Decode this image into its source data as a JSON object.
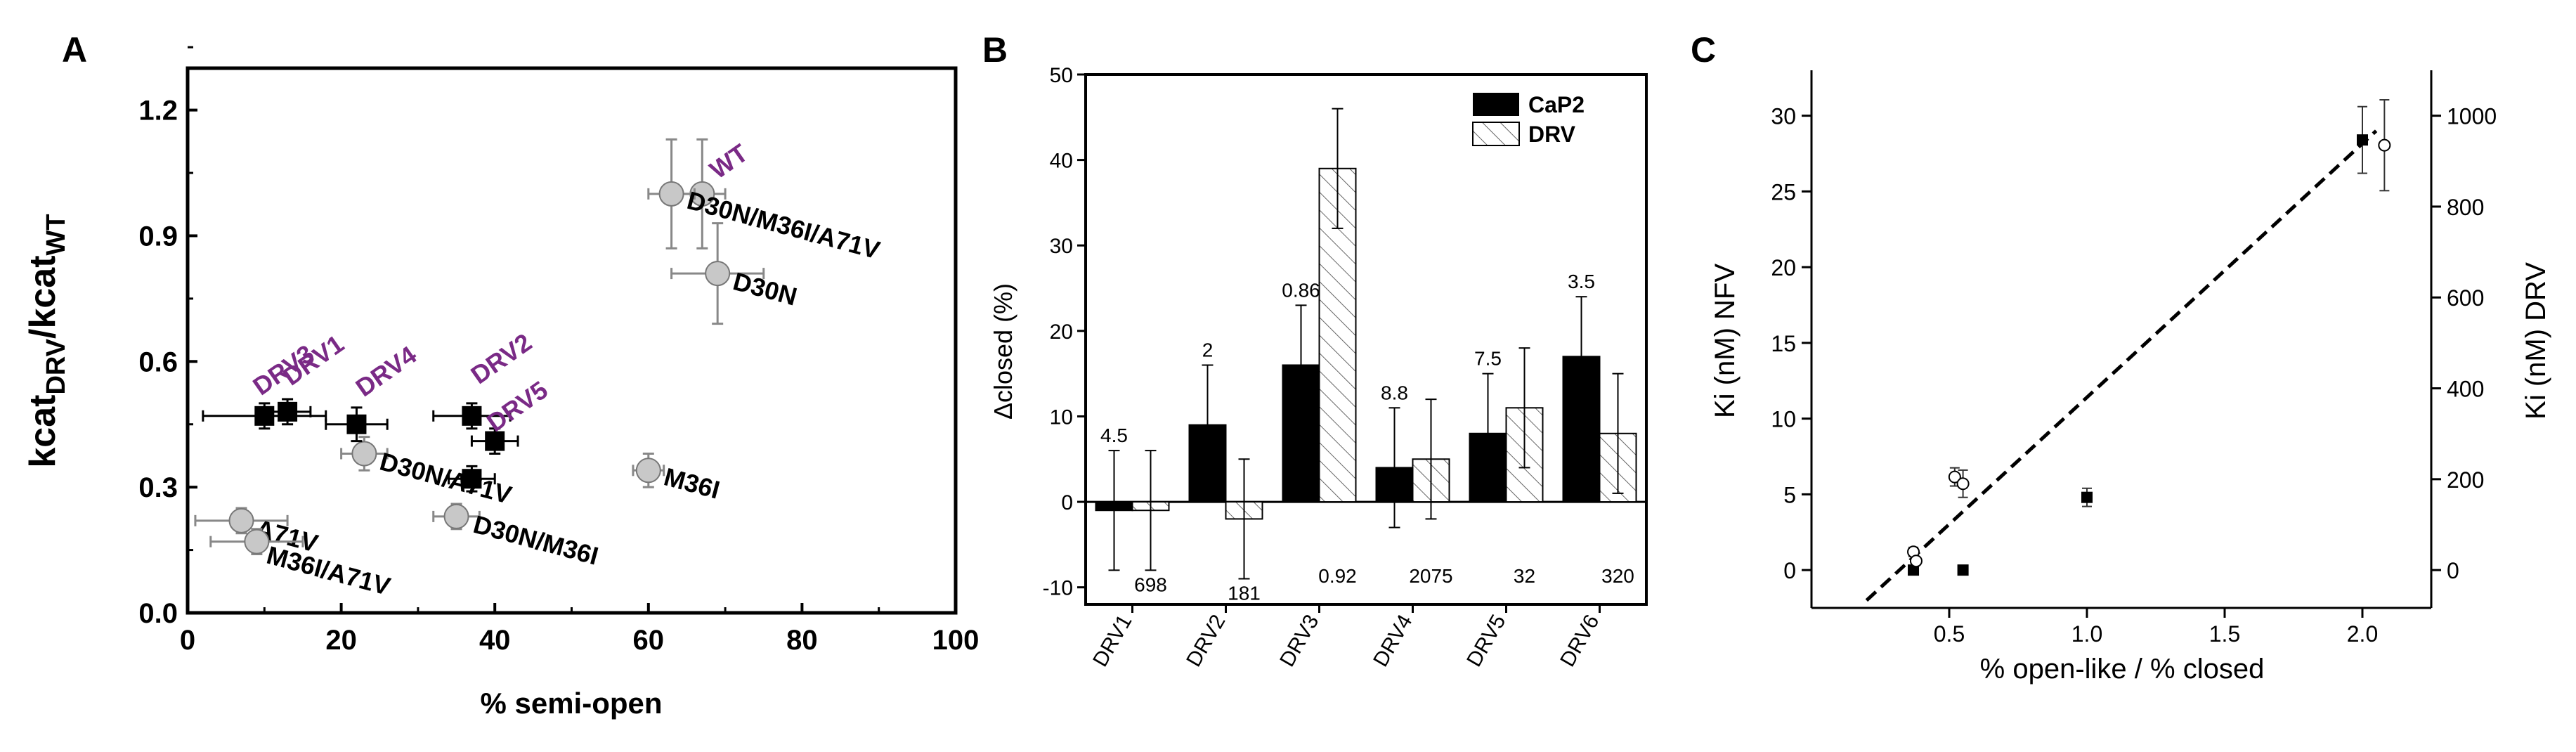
{
  "chart_data": [
    {
      "panel": "A",
      "type": "scatter",
      "ylabel_main": "kcat",
      "ylabel_sub1": "DRV",
      "ylabel_mid": "/kcat",
      "ylabel_sub2": "WT",
      "xlabel": "% semi-open",
      "xlim": [
        0,
        100
      ],
      "ylim": [
        0.0,
        1.3
      ],
      "xticks": [
        0,
        20,
        40,
        60,
        80,
        100
      ],
      "yticks": [
        0.0,
        0.3,
        0.6,
        0.9,
        1.2
      ],
      "ytick_labels": [
        "0.0",
        "0.3",
        "0.6",
        "0.9",
        "1.2"
      ],
      "series": [
        {
          "name": "gray-circles",
          "color": "#c8c8c8",
          "points": [
            {
              "x": 67,
              "y": 1.0,
              "xerr": 3,
              "yerr": 0.13,
              "label": "WT",
              "label_color": "#7a2a86"
            },
            {
              "x": 63,
              "y": 1.0,
              "xerr": 3,
              "yerr": 0.13,
              "label": "D30N/M36I/A71V",
              "label_color": "#000000"
            },
            {
              "x": 69,
              "y": 0.81,
              "xerr": 6,
              "yerr": 0.12,
              "label": "D30N",
              "label_color": "#000000"
            },
            {
              "x": 60,
              "y": 0.34,
              "xerr": 2,
              "yerr": 0.04,
              "label": "M36I",
              "label_color": "#000000"
            },
            {
              "x": 23,
              "y": 0.38,
              "xerr": 3,
              "yerr": 0.04,
              "label": "D30N/A71V",
              "label_color": "#000000"
            },
            {
              "x": 35,
              "y": 0.23,
              "xerr": 3,
              "yerr": 0.03,
              "label": "D30N/M36I",
              "label_color": "#000000"
            },
            {
              "x": 7,
              "y": 0.22,
              "xerr": 6,
              "yerr": 0.03,
              "label": "A71V",
              "label_color": "#000000"
            },
            {
              "x": 9,
              "y": 0.17,
              "xerr": 6,
              "yerr": 0.03,
              "label": "M36I/A71V",
              "label_color": "#000000"
            }
          ]
        },
        {
          "name": "black-squares",
          "color": "#000000",
          "points": [
            {
              "x": 10,
              "y": 0.47,
              "xerr": 8,
              "yerr": 0.03,
              "label": "DRV3",
              "label_color": "#7a2a86"
            },
            {
              "x": 13,
              "y": 0.48,
              "xerr": 3,
              "yerr": 0.03,
              "label": "DRV1",
              "label_color": "#7a2a86"
            },
            {
              "x": 22,
              "y": 0.45,
              "xerr": 4,
              "yerr": 0.04,
              "label": "DRV4",
              "label_color": "#7a2a86"
            },
            {
              "x": 37,
              "y": 0.47,
              "xerr": 5,
              "yerr": 0.03,
              "label": "DRV2",
              "label_color": "#7a2a86"
            },
            {
              "x": 40,
              "y": 0.41,
              "xerr": 3,
              "yerr": 0.03,
              "label": "DRV5",
              "label_color": "#7a2a86"
            },
            {
              "x": 37,
              "y": 0.32,
              "xerr": 3,
              "yerr": 0.03,
              "label": "",
              "label_color": "#000000"
            }
          ]
        }
      ]
    },
    {
      "panel": "B",
      "type": "bar",
      "ylabel": "Δclosed (%)",
      "ylim": [
        -12,
        50
      ],
      "yticks": [
        -10,
        0,
        10,
        20,
        30,
        40,
        50
      ],
      "categories": [
        "DRV1",
        "DRV2",
        "DRV3",
        "DRV4",
        "DRV5",
        "DRV6"
      ],
      "legend_position": "top-right",
      "series": [
        {
          "name": "CaP2",
          "fill": "solid-black",
          "values": [
            -1,
            9,
            16,
            4,
            8,
            17
          ],
          "errors": [
            7,
            7,
            7,
            7,
            7,
            7
          ],
          "annotations": [
            "4.5",
            "2",
            "0.86",
            "8.8",
            "7.5",
            "3.5"
          ]
        },
        {
          "name": "DRV",
          "fill": "hatched",
          "values": [
            -1,
            -2,
            39,
            5,
            11,
            8
          ],
          "errors": [
            7,
            7,
            7,
            7,
            7,
            7
          ],
          "annotations": [
            "698",
            "181",
            "0.92",
            "2075",
            "32",
            "320"
          ]
        }
      ]
    },
    {
      "panel": "C",
      "type": "scatter",
      "xlabel": "% open-like / % closed",
      "ylabel_left": "Ki (nM) NFV",
      "ylabel_right": "Ki (nM) DRV",
      "xlim": [
        0.0,
        2.25
      ],
      "ylim_left": [
        -2.5,
        33
      ],
      "ylim_right": [
        -83.3,
        1100
      ],
      "xticks": [
        0.5,
        1.0,
        1.5,
        2.0
      ],
      "xtick_labels": [
        "0.5",
        "1.0",
        "1.5",
        "2.0"
      ],
      "yticks_left": [
        0,
        5,
        10,
        15,
        20,
        25,
        30
      ],
      "yticks_right": [
        0,
        200,
        400,
        600,
        800,
        1000
      ],
      "series": [
        {
          "name": "NFV",
          "marker": "filled-square",
          "points": [
            {
              "x": 0.37,
              "y": 0.0,
              "yerr": 0
            },
            {
              "x": 0.55,
              "y": 0.0,
              "yerr": 0
            },
            {
              "x": 1.0,
              "y": 4.8,
              "yerr": 0.6
            },
            {
              "x": 2.0,
              "y": 28.4,
              "yerr": 2.2
            }
          ]
        },
        {
          "name": "DRV",
          "marker": "open-circle",
          "points": [
            {
              "x": 0.37,
              "y": 40,
              "yerr": 10
            },
            {
              "x": 0.38,
              "y": 20,
              "yerr": 5
            },
            {
              "x": 0.52,
              "y": 205,
              "yerr": 20
            },
            {
              "x": 0.55,
              "y": 190,
              "yerr": 30
            },
            {
              "x": 2.08,
              "y": 935,
              "yerr": 100
            }
          ]
        }
      ],
      "fit_line": {
        "x": [
          0.2,
          2.05
        ],
        "y": [
          -2.0,
          29.0
        ],
        "style": "dashed"
      }
    }
  ],
  "panels": {
    "a": "A",
    "b": "B",
    "c": "C"
  }
}
